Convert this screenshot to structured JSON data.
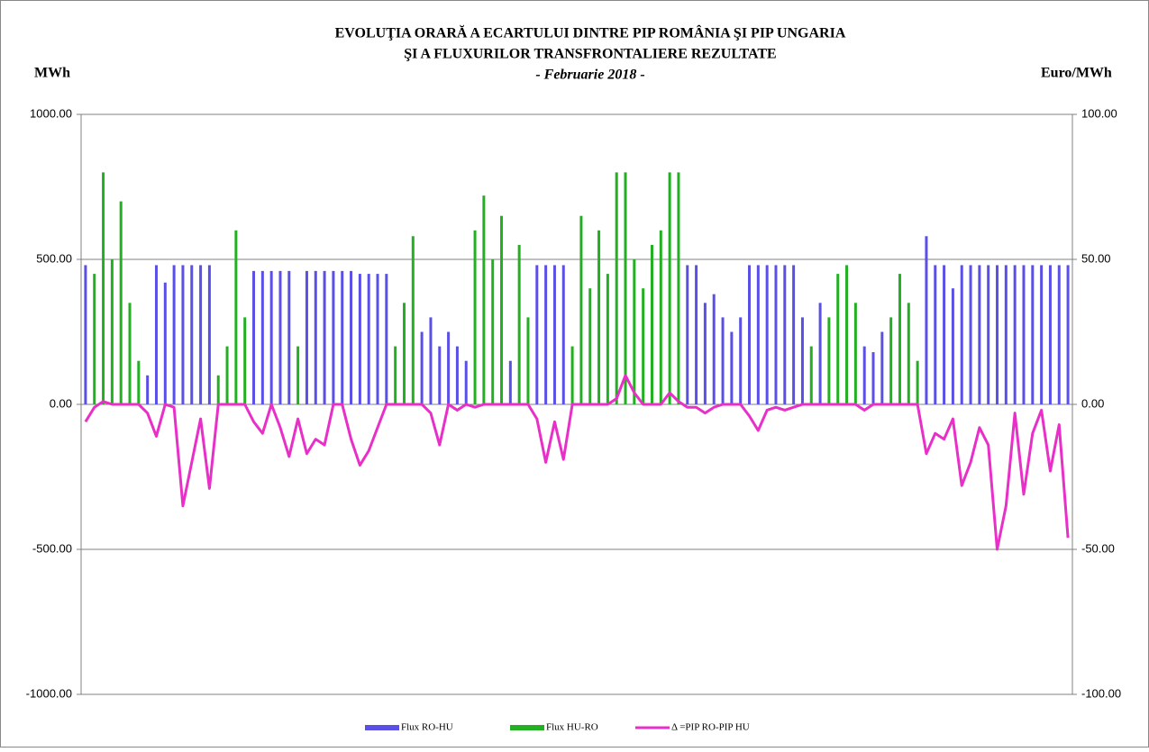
{
  "chart_data": {
    "type": "bar-line",
    "title": "EVOLUŢIA ORARĂ A ECARTULUI DINTRE PIP ROMÂNIA ŞI PIP UNGARIA",
    "subtitle": "ŞI A FLUXURILOR TRANSFRONTALIERE REZULTATE",
    "period": "- Februarie 2018 -",
    "y_label": "MWh",
    "y2_label": "Euro/MWh",
    "categories": [
      null,
      null,
      null,
      null,
      null,
      null,
      null,
      null,
      null,
      null,
      null,
      null,
      null,
      null,
      null,
      null,
      null,
      null,
      null,
      null,
      null,
      null,
      null,
      null,
      null,
      null,
      null,
      null,
      null,
      null,
      null,
      null,
      null,
      null,
      null,
      null,
      null,
      null,
      null,
      null,
      null,
      null,
      null,
      null,
      null,
      null,
      null,
      null,
      null,
      null,
      null,
      null,
      null,
      null,
      null,
      null,
      null,
      null,
      null,
      null,
      null,
      null,
      null,
      null,
      null,
      null,
      null,
      null,
      null,
      null,
      null,
      null,
      null,
      null,
      null,
      null,
      null,
      null,
      null,
      null,
      null,
      null,
      null,
      null,
      null,
      null,
      null,
      null,
      null,
      null,
      null,
      null,
      null,
      null,
      null,
      null,
      null,
      null,
      null,
      null,
      null,
      null,
      null,
      null,
      null,
      null,
      null,
      null,
      null,
      null,
      null,
      null
    ],
    "series": [
      {
        "name": "Flux RO-HU",
        "color": "#5a4fe6",
        "values": [
          480,
          0,
          0,
          0,
          0,
          0,
          0,
          100,
          480,
          420,
          480,
          480,
          480,
          480,
          480,
          0,
          0,
          0,
          0,
          460,
          460,
          460,
          460,
          460,
          0,
          460,
          460,
          460,
          460,
          460,
          460,
          450,
          450,
          450,
          450,
          0,
          0,
          0,
          250,
          300,
          200,
          250,
          200,
          150,
          0,
          0,
          0,
          0,
          150,
          0,
          0,
          480,
          480,
          480,
          480,
          0,
          0,
          0,
          0,
          0,
          0,
          0,
          0,
          0,
          0,
          0,
          0,
          0,
          480,
          480,
          350,
          380,
          300,
          250,
          300,
          480,
          480,
          480,
          480,
          480,
          480,
          300,
          0,
          350,
          0,
          0,
          0,
          0,
          200,
          180,
          250,
          0,
          0,
          0,
          0,
          580,
          480,
          480,
          400,
          480,
          480,
          480,
          480,
          480,
          480,
          480,
          480,
          480,
          480,
          480,
          480,
          480
        ]
      },
      {
        "name": "Flux HU-RO",
        "color": "#22b022",
        "values": [
          0,
          450,
          800,
          500,
          700,
          350,
          150,
          0,
          0,
          0,
          0,
          0,
          0,
          0,
          0,
          100,
          200,
          600,
          300,
          0,
          0,
          0,
          0,
          0,
          200,
          0,
          0,
          0,
          0,
          0,
          0,
          0,
          0,
          0,
          0,
          200,
          350,
          580,
          0,
          0,
          0,
          0,
          0,
          0,
          600,
          720,
          500,
          650,
          0,
          550,
          300,
          0,
          0,
          0,
          0,
          200,
          650,
          400,
          600,
          450,
          800,
          800,
          500,
          400,
          550,
          600,
          800,
          800,
          0,
          0,
          0,
          0,
          0,
          0,
          0,
          0,
          0,
          0,
          0,
          0,
          0,
          0,
          200,
          0,
          300,
          450,
          480,
          350,
          0,
          0,
          0,
          300,
          450,
          350,
          150,
          0,
          0,
          0,
          0,
          0,
          0,
          0,
          0,
          0,
          0,
          0,
          0,
          0,
          0,
          0,
          0,
          0
        ]
      },
      {
        "name": "Δ =PIP RO-PIP HU",
        "color": "#e830c8",
        "axis": "y2",
        "values": [
          -6,
          -1,
          1,
          0,
          0,
          0,
          0,
          -3,
          -11,
          0,
          -1,
          -35,
          -20,
          -5,
          -29,
          0,
          0,
          0,
          0,
          -6,
          -10,
          0,
          -8,
          -18,
          -5,
          -17,
          -12,
          -14,
          0,
          0,
          -12,
          -21,
          -16,
          -8,
          0,
          0,
          0,
          0,
          0,
          -3,
          -14,
          0,
          -2,
          0,
          -1,
          0,
          0,
          0,
          0,
          0,
          0,
          -5,
          -20,
          -6,
          -19,
          0,
          0,
          0,
          0,
          0,
          2,
          10,
          4,
          0,
          0,
          0,
          4,
          1,
          -1,
          -1,
          -3,
          -1,
          0,
          0,
          0,
          -4,
          -9,
          -2,
          -1,
          -2,
          -1,
          0,
          0,
          0,
          0,
          0,
          0,
          0,
          -2,
          0,
          0,
          0,
          0,
          0,
          0,
          -17,
          -10,
          -12,
          -5,
          -28,
          -20,
          -8,
          -14,
          -50,
          -35,
          -3,
          -31,
          -10,
          -2,
          -23,
          -7,
          -46
        ]
      }
    ],
    "ylim": [
      -1000,
      1000
    ],
    "yticks": [
      {
        "value": -1000,
        "label": "-1000.00"
      },
      {
        "value": -500,
        "label": "-500.00"
      },
      {
        "value": 0,
        "label": "0.00"
      },
      {
        "value": 500,
        "label": "500.00"
      },
      {
        "value": 1000,
        "label": "1000.00"
      }
    ],
    "y2lim": [
      -100,
      100
    ],
    "y2ticks": [
      {
        "value": -100,
        "label": "-100.00"
      },
      {
        "value": -50,
        "label": "-50.00"
      },
      {
        "value": 0,
        "label": "0.00"
      },
      {
        "value": 50,
        "label": "50.00"
      },
      {
        "value": 100,
        "label": "100.00"
      }
    ],
    "grid": true,
    "legend": "bottom"
  }
}
